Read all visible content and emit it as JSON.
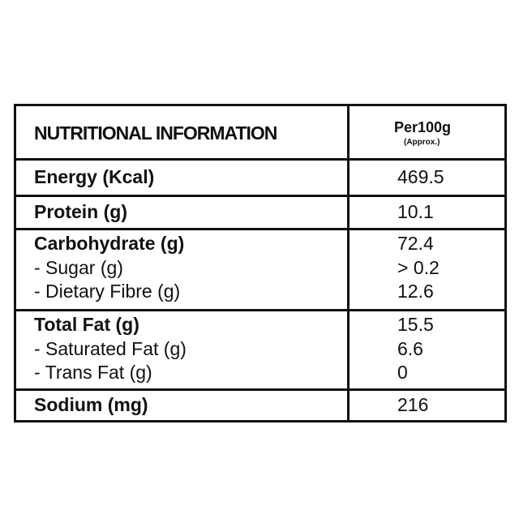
{
  "header": {
    "title": "NUTRITIONAL INFORMATION",
    "per": "Per100g",
    "note": "(Approx.)"
  },
  "table": {
    "rows": [
      {
        "items": [
          {
            "label": "Energy (Kcal)",
            "value": "469.5"
          }
        ]
      },
      {
        "items": [
          {
            "label": "Protein (g)",
            "value": "10.1"
          }
        ]
      },
      {
        "items": [
          {
            "label": "Carbohydrate (g)",
            "value": "72.4"
          },
          {
            "label": "- Sugar (g)",
            "value": "> 0.2"
          },
          {
            "label": "- Dietary Fibre (g)",
            "value": "12.6"
          }
        ]
      },
      {
        "items": [
          {
            "label": "Total Fat (g)",
            "value": "15.5"
          },
          {
            "label": "- Saturated Fat (g)",
            "value": "6.6"
          },
          {
            "label": "- Trans Fat (g)",
            "value": "0"
          }
        ]
      },
      {
        "items": [
          {
            "label": "Sodium (mg)",
            "value": "216"
          }
        ]
      }
    ]
  }
}
